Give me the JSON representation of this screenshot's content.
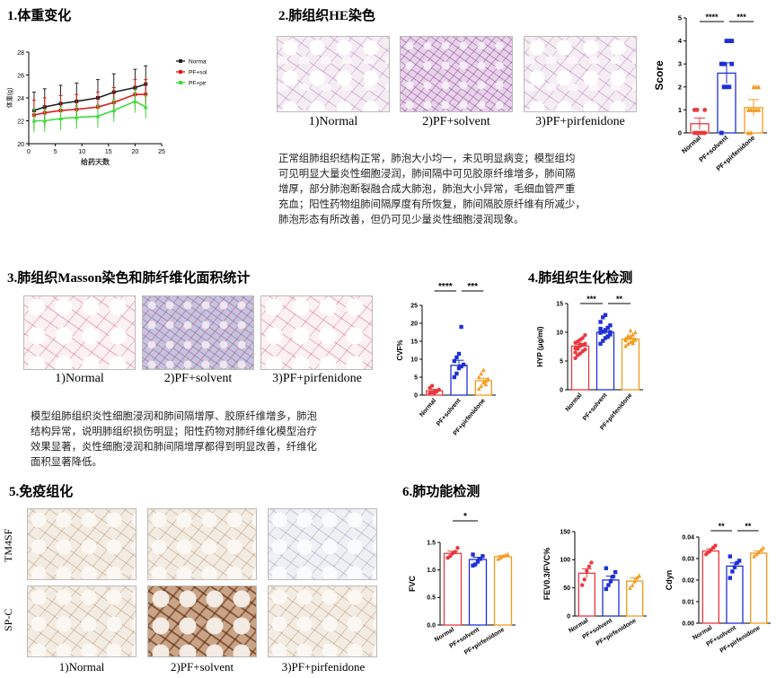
{
  "sections": {
    "s1": "1.体重变化",
    "s2": "2.肺组织HE染色",
    "s3": "3.肺组织Masson染色和肺纤维化面积统计",
    "s4": "4.肺组织生化检测",
    "s5": "5.免疫组化",
    "s6": "6.肺功能检测"
  },
  "groups": [
    "Normal",
    "PF+solvent",
    "PF+pirfenidone"
  ],
  "captions": [
    "1)Normal",
    "2)PF+solvent",
    "3)PF+pirfenidone"
  ],
  "ihc_rows": [
    "TM4SF",
    "SP-C"
  ],
  "he_text": [
    "正常组肺组织结构正常，肺泡大小均一，未见明显病变；模型组均",
    "可见明显大量炎性细胞浸润，肺间隔中可见胶原纤维增多，肺间隔",
    "增厚，部分肺泡断裂融合成大肺泡，肺泡大小异常，毛细血管严重",
    "充血；阳性药物组肺间隔厚度有所恢复，肺间隔胶原纤维有所减少，",
    "肺泡形态有所改善，但仍可见少量炎性细胞浸润现象。"
  ],
  "masson_text": [
    "模型组肺组织炎性细胞浸润和肺间隔增厚、胶原纤维增多，肺泡",
    "结构异常，说明肺组织损伤明显；阳性药物对肺纤维化模型治疗",
    "效果显著，炎性细胞浸润和肺间隔增厚都得到明显改善，纤维化",
    "面积显著降低。"
  ],
  "colors": {
    "normal": "#e8393f",
    "solvent": "#1f2fd6",
    "pirfenidone": "#f39a1c",
    "body_normal": "#222222",
    "body_solvent": "#e01b1b",
    "body_pirf": "#3ddc3d"
  },
  "chart_data": [
    {
      "id": "body_weight",
      "type": "line",
      "xlabel": "给药天数",
      "ylabel": "体重(g)",
      "xlim": [
        0,
        25
      ],
      "ylim": [
        20,
        28
      ],
      "xticks": [
        0,
        5,
        10,
        15,
        20,
        25
      ],
      "yticks": [
        20,
        22,
        24,
        26,
        28
      ],
      "legend": "right",
      "x": [
        1,
        3,
        6,
        9,
        13,
        16,
        20,
        22
      ],
      "series": [
        {
          "name": "Normal",
          "values": [
            22.9,
            23.2,
            23.5,
            23.7,
            24.0,
            24.5,
            24.9,
            25.2
          ],
          "err": 1.6
        },
        {
          "name": "PF+solvent",
          "values": [
            22.5,
            22.7,
            22.9,
            23.0,
            23.2,
            23.6,
            24.3,
            24.3
          ],
          "err": 1.3
        },
        {
          "name": "PF+pirfenidone",
          "values": [
            22.0,
            22.0,
            22.2,
            22.3,
            22.4,
            22.9,
            23.7,
            23.2
          ],
          "err": 1.0
        }
      ]
    },
    {
      "id": "he_score",
      "type": "bar",
      "ylabel": "Score",
      "ylim": [
        0,
        5
      ],
      "yticks": [
        0,
        1,
        2,
        3,
        4,
        5
      ],
      "categories": [
        "Normal",
        "PF+solvent",
        "PF+pirfenidone"
      ],
      "values": [
        0.4,
        2.6,
        1.1
      ],
      "err": [
        0.25,
        0.45,
        0.35
      ],
      "points": [
        [
          0,
          0,
          0,
          0,
          1,
          1,
          1,
          0,
          0,
          0
        ],
        [
          0,
          2,
          2,
          2,
          3,
          3,
          3,
          4,
          4,
          4
        ],
        [
          0,
          0,
          1,
          1,
          1,
          1,
          1,
          2,
          2,
          2
        ]
      ],
      "sig": [
        {
          "a": 0,
          "b": 1,
          "label": "****"
        },
        {
          "a": 1,
          "b": 2,
          "label": "***"
        }
      ]
    },
    {
      "id": "cvf",
      "type": "bar",
      "ylabel": "CVF%",
      "ylim": [
        0,
        25
      ],
      "yticks": [
        0,
        5,
        10,
        15,
        20,
        25
      ],
      "categories": [
        "Normal",
        "PF+solvent",
        "PF+pirfenidone"
      ],
      "values": [
        1.2,
        8.3,
        4.0
      ],
      "err": [
        0.4,
        1.4,
        0.7
      ],
      "points": [
        [
          0.5,
          0.8,
          1.0,
          1.2,
          1.5,
          2.0,
          2.6,
          0.6,
          1.0
        ],
        [
          5.0,
          6.0,
          7.5,
          8.0,
          8.5,
          9.5,
          10.5,
          11.5,
          19.0
        ],
        [
          1.8,
          2.5,
          3.5,
          4.0,
          4.5,
          5.0,
          6.0,
          7.0,
          3.0
        ]
      ],
      "sig": [
        {
          "a": 0,
          "b": 1,
          "label": "****"
        },
        {
          "a": 1,
          "b": 2,
          "label": "***"
        }
      ]
    },
    {
      "id": "hyp",
      "type": "bar",
      "ylabel": "HYP (μg/ml)",
      "ylim": [
        0,
        15
      ],
      "yticks": [
        0,
        5,
        10,
        15
      ],
      "categories": [
        "Normal",
        "PF+solvent",
        "PF+pirfenidone"
      ],
      "values": [
        7.6,
        10.0,
        8.8
      ],
      "err": [
        0.3,
        0.3,
        0.2
      ],
      "points": [
        [
          5.5,
          6.0,
          6.3,
          6.7,
          7.0,
          7.2,
          7.4,
          7.6,
          7.8,
          8.0,
          8.2,
          8.4,
          8.7,
          9.0,
          9.5,
          6.5,
          7.1,
          7.9
        ],
        [
          8.0,
          8.5,
          9.0,
          9.3,
          9.6,
          9.9,
          10.1,
          10.4,
          10.8,
          11.2,
          11.8,
          12.6,
          13.0,
          9.2,
          10.0,
          10.6
        ],
        [
          7.6,
          8.0,
          8.3,
          8.5,
          8.7,
          8.9,
          9.1,
          9.3,
          9.6,
          10.0,
          8.6,
          9.4,
          10.3,
          8.1
        ]
      ],
      "sig": [
        {
          "a": 0,
          "b": 1,
          "label": "***"
        },
        {
          "a": 1,
          "b": 2,
          "label": "**"
        }
      ]
    },
    {
      "id": "fvc",
      "type": "bar",
      "ylabel": "FVC",
      "ylim": [
        0,
        1.5
      ],
      "yticks": [
        0.0,
        0.5,
        1.0,
        1.5
      ],
      "categories": [
        "Normal",
        "PF+solvent",
        "PF+pirfenidone"
      ],
      "values": [
        1.3,
        1.19,
        1.24
      ],
      "err": [
        0.04,
        0.04,
        0.02
      ],
      "points": [
        [
          1.22,
          1.25,
          1.3,
          1.33,
          1.4
        ],
        [
          1.08,
          1.1,
          1.15,
          1.2,
          1.25,
          1.28
        ],
        [
          1.2,
          1.22,
          1.25,
          1.27,
          1.28
        ]
      ],
      "sig": [
        {
          "a": 0,
          "b": 1,
          "label": "*"
        }
      ]
    },
    {
      "id": "fev03",
      "type": "bar",
      "ylabel": "FEV0.3/FVC%",
      "ylim": [
        0,
        150
      ],
      "yticks": [
        0,
        50,
        100,
        150
      ],
      "categories": [
        "Normal",
        "PF+solvent",
        "PF+pirfenidone"
      ],
      "values": [
        76,
        64,
        62
      ],
      "err": [
        8,
        7,
        6
      ],
      "points": [
        [
          55,
          65,
          80,
          88,
          95
        ],
        [
          48,
          55,
          62,
          70,
          78,
          85
        ],
        [
          50,
          55,
          62,
          68,
          72
        ]
      ],
      "sig": []
    },
    {
      "id": "cdyn",
      "type": "bar",
      "ylabel": "Cdyn",
      "ylim": [
        0,
        0.04
      ],
      "yticks": [
        0.0,
        0.01,
        0.02,
        0.03,
        0.04
      ],
      "categories": [
        "Normal",
        "PF+solvent",
        "PF+pirfenidone"
      ],
      "values": [
        0.0335,
        0.0265,
        0.0325
      ],
      "err": [
        0.001,
        0.0015,
        0.001
      ],
      "points": [
        [
          0.032,
          0.033,
          0.034,
          0.035,
          0.036
        ],
        [
          0.021,
          0.024,
          0.026,
          0.028,
          0.029,
          0.031
        ],
        [
          0.031,
          0.032,
          0.033,
          0.034,
          0.035
        ]
      ],
      "sig": [
        {
          "a": 0,
          "b": 1,
          "label": "**"
        },
        {
          "a": 1,
          "b": 2,
          "label": "**"
        }
      ]
    }
  ]
}
